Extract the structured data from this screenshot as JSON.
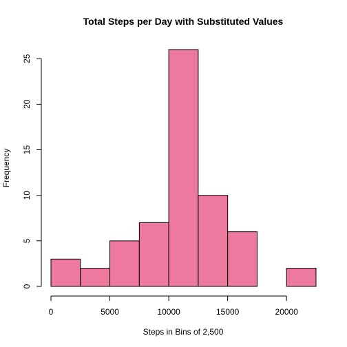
{
  "chart_data": {
    "type": "bar",
    "title": "Total Steps per Day with Substituted Values",
    "xlabel": "Steps in Bins of 2,500",
    "ylabel": "Frequency",
    "bins": [
      {
        "start": 0,
        "end": 2500,
        "count": 3
      },
      {
        "start": 2500,
        "end": 5000,
        "count": 2
      },
      {
        "start": 5000,
        "end": 7500,
        "count": 5
      },
      {
        "start": 7500,
        "end": 10000,
        "count": 7
      },
      {
        "start": 10000,
        "end": 12500,
        "count": 26
      },
      {
        "start": 12500,
        "end": 15000,
        "count": 10
      },
      {
        "start": 15000,
        "end": 17500,
        "count": 6
      },
      {
        "start": 17500,
        "end": 20000,
        "count": 0
      },
      {
        "start": 20000,
        "end": 22500,
        "count": 2
      }
    ],
    "xlim": [
      0,
      22500
    ],
    "ylim": [
      0,
      26
    ],
    "x_ticks": [
      0,
      5000,
      10000,
      15000,
      20000
    ],
    "y_ticks": [
      0,
      5,
      10,
      15,
      20,
      25
    ],
    "grid": false,
    "bar_color": "#ee799f"
  }
}
